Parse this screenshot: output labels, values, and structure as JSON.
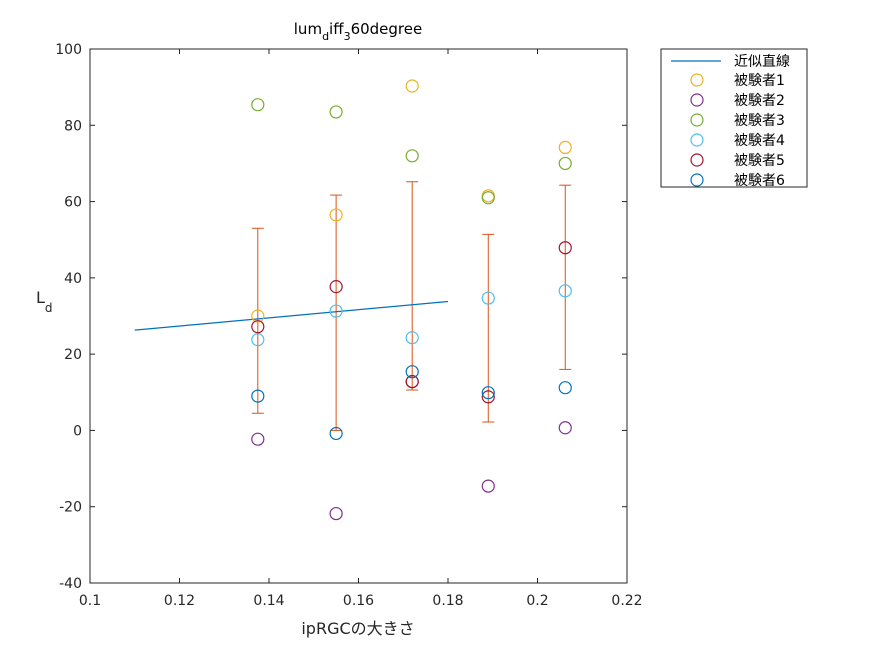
{
  "chart_data": {
    "type": "scatter",
    "title": {
      "main": "lum",
      "sub1": "d",
      "mid": "iff",
      "sub2": "3",
      "tail": "60degree"
    },
    "xlabel": "ipRGCの大きさ",
    "ylabel": {
      "main": "L",
      "sub": "d"
    },
    "xlim": [
      0.1,
      0.22
    ],
    "ylim": [
      -40,
      100
    ],
    "xticks": [
      0.1,
      0.12,
      0.14,
      0.16,
      0.18,
      0.2,
      0.22
    ],
    "xtick_labels": [
      "0.1",
      "0.12",
      "0.14",
      "0.16",
      "0.18",
      "0.2",
      "0.22"
    ],
    "yticks": [
      -40,
      -20,
      0,
      20,
      40,
      60,
      80,
      100
    ],
    "ytick_labels": [
      "-40",
      "-20",
      "0",
      "20",
      "40",
      "60",
      "80",
      "100"
    ],
    "grid": false,
    "legend_position": "outside-top-right",
    "fit_line": {
      "name": "近似直線",
      "color": "#0072BD",
      "x": [
        0.11,
        0.18
      ],
      "y": [
        26.3,
        33.8
      ]
    },
    "errorbars": {
      "color": "#D95319",
      "points": [
        {
          "x": 0.1375,
          "low": 4.5,
          "high": 53.0
        },
        {
          "x": 0.155,
          "low": 0.0,
          "high": 61.7
        },
        {
          "x": 0.172,
          "low": 10.6,
          "high": 65.2
        },
        {
          "x": 0.189,
          "low": 2.2,
          "high": 51.4
        },
        {
          "x": 0.2062,
          "low": 16.0,
          "high": 64.3
        }
      ]
    },
    "x": [
      0.1375,
      0.155,
      0.172,
      0.189,
      0.2062
    ],
    "series": [
      {
        "name": "被験者1",
        "color": "#EDB120",
        "values": [
          30.0,
          56.5,
          90.3,
          61.5,
          74.2
        ]
      },
      {
        "name": "被験者2",
        "color": "#7E2F8E",
        "values": [
          -2.3,
          -21.8,
          12.8,
          -14.6,
          0.7
        ]
      },
      {
        "name": "被験者3",
        "color": "#77AC30",
        "values": [
          85.4,
          83.5,
          72.0,
          61.0,
          70.0
        ]
      },
      {
        "name": "被験者4",
        "color": "#4DBEEE",
        "values": [
          23.8,
          31.3,
          24.3,
          34.7,
          36.6
        ]
      },
      {
        "name": "被験者5",
        "color": "#A2142F",
        "values": [
          27.2,
          37.7,
          12.8,
          8.8,
          47.9
        ]
      },
      {
        "name": "被験者6",
        "color": "#0072BD",
        "values": [
          9.0,
          -0.8,
          15.4,
          9.9,
          11.2
        ]
      }
    ]
  }
}
